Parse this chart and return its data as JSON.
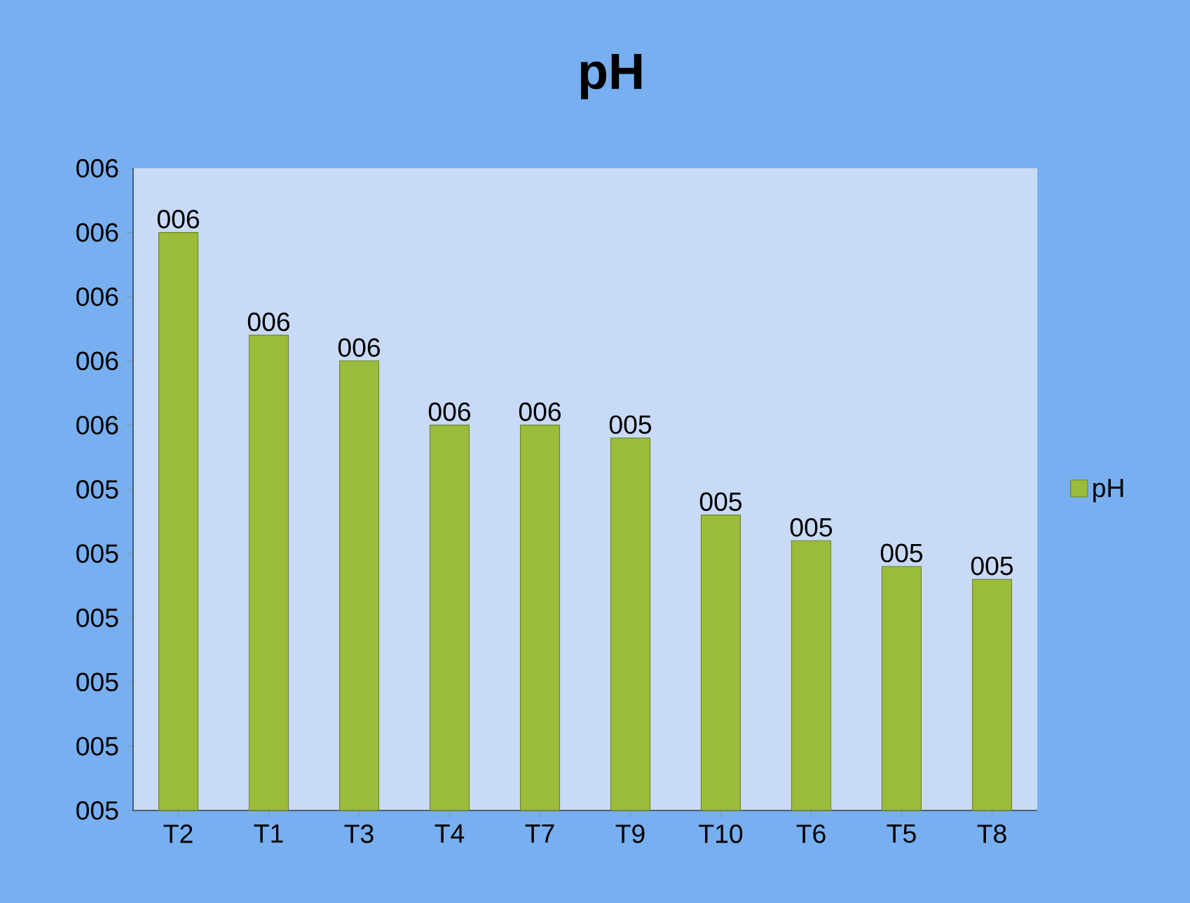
{
  "chart_data": {
    "type": "bar",
    "title": "pH",
    "categories": [
      "T2",
      "T1",
      "T3",
      "T4",
      "T7",
      "T9",
      "T10",
      "T6",
      "T5",
      "T8"
    ],
    "series": [
      {
        "name": "pH",
        "color": "#9bbb3b",
        "values": [
          5.8,
          5.64,
          5.6,
          5.5,
          5.5,
          5.48,
          5.36,
          5.32,
          5.28,
          5.26
        ],
        "value_labels": [
          "006",
          "006",
          "006",
          "006",
          "006",
          "005",
          "005",
          "005",
          "005",
          "005"
        ]
      }
    ],
    "ylim": [
      4.9,
      5.9
    ],
    "yticks": [
      {
        "value": 4.9,
        "label": "005"
      },
      {
        "value": 5.0,
        "label": "005"
      },
      {
        "value": 5.1,
        "label": "005"
      },
      {
        "value": 5.2,
        "label": "005"
      },
      {
        "value": 5.3,
        "label": "005"
      },
      {
        "value": 5.4,
        "label": "005"
      },
      {
        "value": 5.5,
        "label": "006"
      },
      {
        "value": 5.6,
        "label": "006"
      },
      {
        "value": 5.7,
        "label": "006"
      },
      {
        "value": 5.8,
        "label": "006"
      },
      {
        "value": 5.9,
        "label": "006"
      }
    ],
    "legend": "right"
  }
}
